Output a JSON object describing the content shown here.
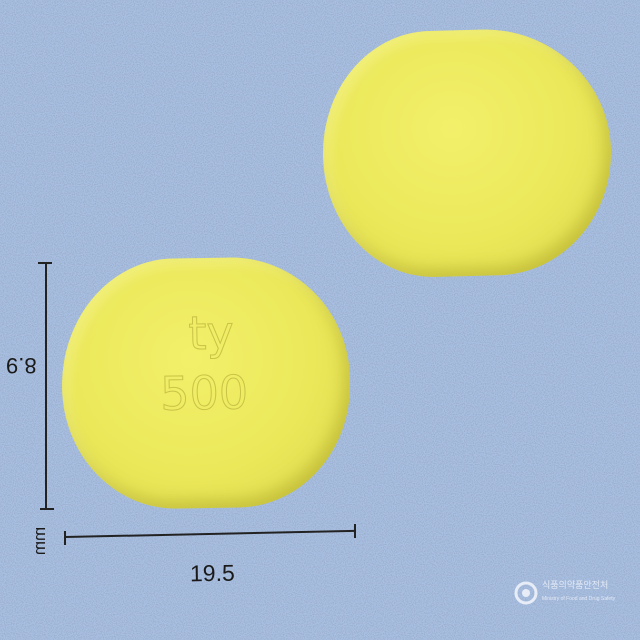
{
  "image": {
    "subject": "two yellow tablets",
    "background_color": "#a9c0e2",
    "tablet_color": "#ebe85a"
  },
  "tablet_front": {
    "imprint_line1": "ty",
    "imprint_line2": "500"
  },
  "measurements": {
    "height": "8.9",
    "width": "19.5",
    "unit": "mm"
  },
  "watermark": {
    "logo_icon": "agency-emblem-icon",
    "text": "식품의약품안전처",
    "subtext": "Ministry of Food and Drug Safety"
  }
}
